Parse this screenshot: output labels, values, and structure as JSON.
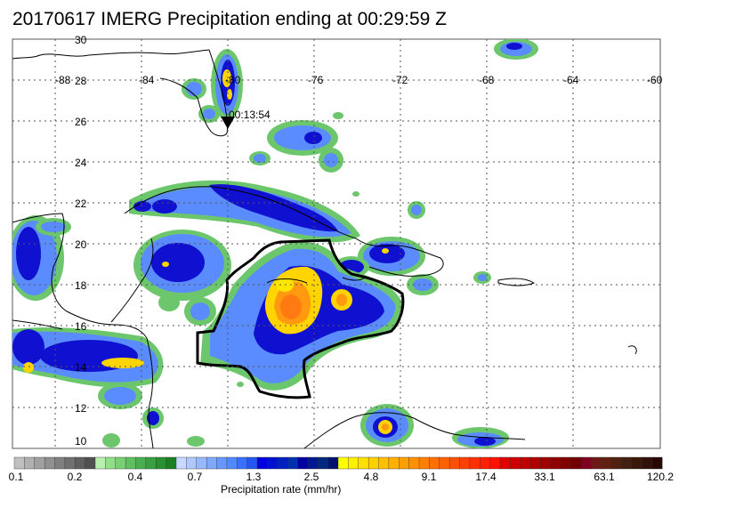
{
  "title": "20170617 IMERG Precipitation ending at 00:29:59 Z",
  "lat_labels": [
    "30",
    "28",
    "26",
    "24",
    "22",
    "20",
    "18",
    "16",
    "14",
    "12",
    "10"
  ],
  "lon_labels": [
    "-88",
    "-84",
    "-80",
    "-76",
    "-72",
    "-68",
    "-64",
    "-60"
  ],
  "overpass_label": "00:13:54",
  "colorbar": {
    "title": "Precipitation rate (mm/hr)",
    "tick_labels": [
      "0.1",
      "0.2",
      "0.4",
      "0.7",
      "1.3",
      "2.5",
      "4.8",
      "9.1",
      "17.4",
      "33.1",
      "63.1",
      "120.2"
    ],
    "colors": [
      "#c0c0c0",
      "#b0b0b0",
      "#a0a0a0",
      "#909090",
      "#808080",
      "#707070",
      "#606060",
      "#505050",
      "#b8f0b0",
      "#90e088",
      "#78d070",
      "#60c060",
      "#48b050",
      "#38a040",
      "#289030",
      "#188020",
      "#c8d8ff",
      "#b0c8ff",
      "#98b8ff",
      "#80a8ff",
      "#6898ff",
      "#5088ff",
      "#3870ff",
      "#2058f0",
      "#0000e0",
      "#0010d0",
      "#0020c0",
      "#0030b0",
      "#0000a0",
      "#001890",
      "#002880",
      "#001070",
      "#ffff00",
      "#fff000",
      "#ffe000",
      "#ffd000",
      "#ffc000",
      "#ffb000",
      "#ffa000",
      "#ff9000",
      "#ff8000",
      "#ff7000",
      "#ff6000",
      "#ff5000",
      "#ff4000",
      "#ff3000",
      "#ff2000",
      "#ff1000",
      "#e00000",
      "#d00000",
      "#c00000",
      "#b00000",
      "#a00000",
      "#900000",
      "#800000",
      "#700000",
      "#800020",
      "#701818",
      "#602010",
      "#502010",
      "#402010",
      "#3a1808",
      "#301008",
      "#280800"
    ]
  }
}
